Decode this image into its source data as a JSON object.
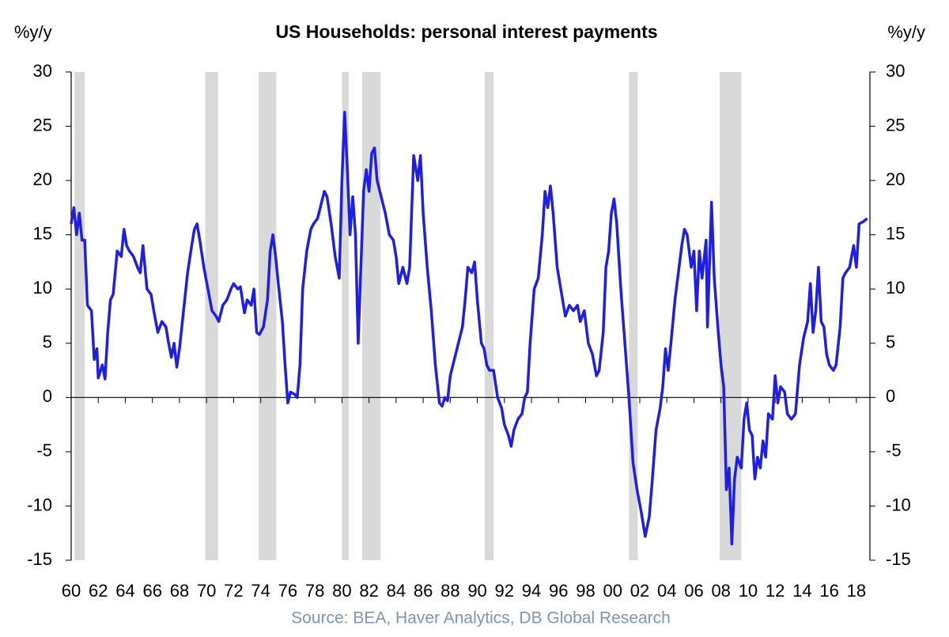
{
  "chart_data": {
    "type": "line",
    "title": "US Households: personal interest payments",
    "ylabel": "%y/y",
    "y2label": "%y/y",
    "source": "Source: BEA, Haver Analytics, DB Global Research",
    "xlim": [
      1960,
      2019
    ],
    "ylim": [
      -15,
      30
    ],
    "yticks": [
      -15,
      -10,
      -5,
      0,
      5,
      10,
      15,
      20,
      25,
      30
    ],
    "y2lim": [
      -15,
      30
    ],
    "y2ticks": [
      -15,
      -10,
      -5,
      0,
      5,
      10,
      15,
      20,
      25,
      30
    ],
    "xticks": [
      {
        "value": 1960,
        "label": "60"
      },
      {
        "value": 1962,
        "label": "62"
      },
      {
        "value": 1964,
        "label": "64"
      },
      {
        "value": 1966,
        "label": "66"
      },
      {
        "value": 1968,
        "label": "68"
      },
      {
        "value": 1970,
        "label": "70"
      },
      {
        "value": 1972,
        "label": "72"
      },
      {
        "value": 1974,
        "label": "74"
      },
      {
        "value": 1976,
        "label": "76"
      },
      {
        "value": 1978,
        "label": "78"
      },
      {
        "value": 1980,
        "label": "80"
      },
      {
        "value": 1982,
        "label": "82"
      },
      {
        "value": 1984,
        "label": "84"
      },
      {
        "value": 1986,
        "label": "86"
      },
      {
        "value": 1988,
        "label": "88"
      },
      {
        "value": 1990,
        "label": "90"
      },
      {
        "value": 1992,
        "label": "92"
      },
      {
        "value": 1994,
        "label": "94"
      },
      {
        "value": 1996,
        "label": "96"
      },
      {
        "value": 1998,
        "label": "98"
      },
      {
        "value": 2000,
        "label": "00"
      },
      {
        "value": 2002,
        "label": "02"
      },
      {
        "value": 2004,
        "label": "04"
      },
      {
        "value": 2006,
        "label": "06"
      },
      {
        "value": 2008,
        "label": "08"
      },
      {
        "value": 2010,
        "label": "10"
      },
      {
        "value": 2012,
        "label": "12"
      },
      {
        "value": 2014,
        "label": "14"
      },
      {
        "value": 2016,
        "label": "16"
      },
      {
        "value": 2018,
        "label": "18"
      }
    ],
    "recessions": [
      [
        1960.25,
        1961.0
      ],
      [
        1969.9,
        1970.85
      ],
      [
        1973.85,
        1975.15
      ],
      [
        1980.0,
        1980.5
      ],
      [
        1981.5,
        1982.85
      ],
      [
        1990.55,
        1991.2
      ],
      [
        2001.2,
        2001.85
      ],
      [
        2007.9,
        2009.5
      ]
    ],
    "recession_color": "#d9d9d9",
    "x": [
      1960.0,
      1960.2,
      1960.4,
      1960.6,
      1960.8,
      1961.0,
      1961.2,
      1961.5,
      1961.7,
      1961.9,
      1962.0,
      1962.3,
      1962.5,
      1962.7,
      1962.9,
      1963.1,
      1963.4,
      1963.7,
      1963.9,
      1964.1,
      1964.3,
      1964.6,
      1964.9,
      1965.1,
      1965.3,
      1965.6,
      1965.9,
      1966.1,
      1966.4,
      1966.7,
      1967.0,
      1967.2,
      1967.4,
      1967.6,
      1967.8,
      1968.0,
      1968.3,
      1968.6,
      1968.9,
      1969.1,
      1969.3,
      1969.5,
      1969.8,
      1970.1,
      1970.4,
      1970.7,
      1970.9,
      1971.2,
      1971.5,
      1971.8,
      1972.0,
      1972.3,
      1972.5,
      1972.8,
      1973.0,
      1973.3,
      1973.5,
      1973.7,
      1973.9,
      1974.2,
      1974.5,
      1974.7,
      1974.9,
      1975.1,
      1975.3,
      1975.6,
      1975.8,
      1976.0,
      1976.2,
      1976.5,
      1976.7,
      1976.9,
      1977.1,
      1977.4,
      1977.7,
      1977.9,
      1978.2,
      1978.5,
      1978.7,
      1978.9,
      1979.2,
      1979.5,
      1979.8,
      1980.0,
      1980.2,
      1980.4,
      1980.6,
      1980.8,
      1981.0,
      1981.2,
      1981.4,
      1981.6,
      1981.8,
      1982.0,
      1982.2,
      1982.4,
      1982.6,
      1982.9,
      1983.2,
      1983.5,
      1983.8,
      1984.0,
      1984.2,
      1984.5,
      1984.8,
      1985.0,
      1985.3,
      1985.6,
      1985.8,
      1986.0,
      1986.3,
      1986.6,
      1986.9,
      1987.2,
      1987.4,
      1987.6,
      1987.8,
      1988.0,
      1988.3,
      1988.6,
      1988.9,
      1989.1,
      1989.3,
      1989.6,
      1989.8,
      1990.0,
      1990.3,
      1990.5,
      1990.7,
      1990.9,
      1991.2,
      1991.5,
      1991.8,
      1992.0,
      1992.3,
      1992.5,
      1992.7,
      1993.0,
      1993.3,
      1993.5,
      1993.7,
      1993.9,
      1994.2,
      1994.5,
      1994.8,
      1995.0,
      1995.2,
      1995.4,
      1995.6,
      1995.9,
      1996.1,
      1996.3,
      1996.5,
      1996.8,
      1997.1,
      1997.4,
      1997.6,
      1997.9,
      1998.2,
      1998.5,
      1998.8,
      1999.0,
      1999.3,
      1999.5,
      1999.7,
      1999.9,
      2000.1,
      2000.3,
      2000.6,
      2000.9,
      2001.2,
      2001.5,
      2001.8,
      2002.1,
      2002.4,
      2002.7,
      2002.9,
      2003.2,
      2003.5,
      2003.7,
      2003.9,
      2004.1,
      2004.3,
      2004.6,
      2004.9,
      2005.1,
      2005.3,
      2005.5,
      2005.8,
      2006.0,
      2006.2,
      2006.4,
      2006.6,
      2006.9,
      2007.0,
      2007.3,
      2007.5,
      2007.8,
      2008.0,
      2008.2,
      2008.4,
      2008.6,
      2008.8,
      2009.0,
      2009.2,
      2009.5,
      2009.7,
      2009.9,
      2010.1,
      2010.3,
      2010.5,
      2010.7,
      2010.9,
      2011.1,
      2011.3,
      2011.5,
      2011.8,
      2012.0,
      2012.2,
      2012.4,
      2012.7,
      2012.9,
      2013.2,
      2013.5,
      2013.8,
      2014.1,
      2014.4,
      2014.6,
      2014.8,
      2015.0,
      2015.2,
      2015.4,
      2015.6,
      2015.8,
      2016.0,
      2016.3,
      2016.5,
      2016.8,
      2017.0,
      2017.2,
      2017.5,
      2017.8,
      2018.0,
      2018.2,
      2018.5,
      2018.8
    ],
    "series": [
      {
        "color": "#1f1fe0",
        "values": [
          16,
          17.5,
          15,
          17,
          14.5,
          14.5,
          8.5,
          8,
          3.5,
          4.5,
          1.8,
          3,
          1.7,
          6,
          9,
          9.5,
          13.5,
          13,
          15.5,
          14,
          13.5,
          13,
          12,
          11.5,
          14,
          10,
          9.5,
          8,
          6,
          7,
          6.5,
          5,
          3.7,
          5,
          2.8,
          4.5,
          8,
          11.5,
          14,
          15.5,
          16,
          14.5,
          12,
          10,
          8,
          7.5,
          7,
          8.5,
          9,
          10,
          10.5,
          10,
          10.2,
          7.8,
          9,
          8.5,
          10,
          6,
          5.8,
          6.5,
          9,
          13.5,
          15,
          13,
          10.5,
          7,
          3,
          -0.5,
          0.5,
          0.3,
          0,
          3,
          10,
          13.5,
          15.5,
          16,
          16.5,
          18,
          19,
          18.5,
          16,
          13,
          11,
          20,
          26.3,
          21,
          15,
          18.5,
          15,
          5,
          12,
          19,
          21,
          19,
          22.5,
          23,
          20,
          18.5,
          17,
          15,
          14.5,
          13,
          10.5,
          12,
          10.5,
          12,
          22.3,
          20,
          22.3,
          17,
          12,
          8,
          3,
          -0.5,
          -0.8,
          0,
          -0.3,
          2,
          3.5,
          5,
          6.5,
          9,
          12,
          11.5,
          12.5,
          9,
          5,
          4.5,
          3,
          2.5,
          2.5,
          0,
          -1,
          -2.5,
          -3.5,
          -4.5,
          -3,
          -2,
          -1.5,
          0,
          0.5,
          5,
          10,
          11,
          15,
          19,
          17.5,
          19.5,
          17,
          12,
          10.5,
          9,
          7.5,
          8.5,
          8,
          8.5,
          7,
          8,
          5,
          4,
          2,
          2.5,
          6,
          12,
          13.5,
          17,
          18.3,
          16,
          10,
          5,
          0,
          -6,
          -8.5,
          -10.5,
          -12.8,
          -11,
          -8,
          -3,
          -1,
          1,
          4.5,
          2.5,
          5,
          9,
          12,
          14,
          15.5,
          15,
          12,
          13.5,
          8,
          13.5,
          11,
          14.5,
          6.5,
          18,
          11,
          6,
          3,
          1,
          -8.5,
          -6.5,
          -13.5,
          -7.5,
          -5.5,
          -6.5,
          -2,
          -0.5,
          -3,
          -3.5,
          -7.5,
          -5.5,
          -6.5,
          -4,
          -5.5,
          -1.5,
          -2,
          2,
          -0.5,
          1,
          0.5,
          -1.5,
          -2,
          -1.5,
          3,
          5.5,
          7,
          10.5,
          6,
          8,
          12,
          7,
          6.5,
          4,
          3,
          2.5,
          3,
          6.5,
          11,
          11.5,
          12,
          14,
          12,
          16,
          16.2,
          16.5
        ]
      }
    ]
  }
}
